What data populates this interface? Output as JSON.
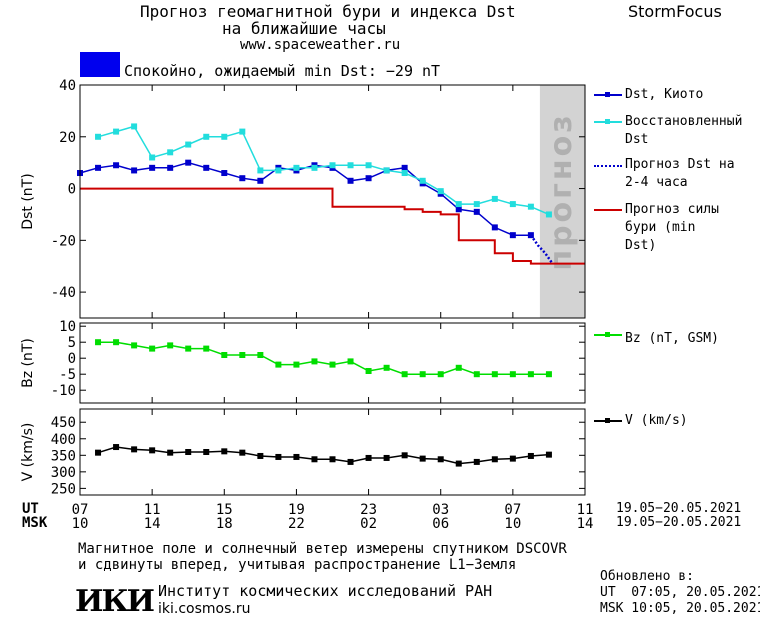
{
  "header": {
    "title_line1": "Прогноз геомагнитной бури и индекса Dst",
    "title_line2": "на ближайшие часы",
    "site": "www.spaceweather.ru",
    "brand": "StormFocus",
    "status_text": "Спокойно, ожидаемый min Dst: −29 nT",
    "status_color": "#0000ee"
  },
  "forecast_band_label": "прогноз",
  "footer": {
    "ut_label": "UT",
    "msk_label": "MSK",
    "ut_ticks": [
      "07",
      "11",
      "15",
      "19",
      "23",
      "03",
      "07",
      "11"
    ],
    "msk_ticks": [
      "10",
      "14",
      "18",
      "22",
      "02",
      "06",
      "10",
      "14"
    ],
    "ut_range": "19.05−20.05.2021",
    "msk_range": "19.05−20.05.2021",
    "note_line1": "Магнитное поле и солнечный ветер измерены спутником DSCOVR",
    "note_line2": "и сдвинуты вперед, учитывая распространение L1−Земля",
    "institute": "Институт космических исследований РАН",
    "institute_url": "iki.cosmos.ru",
    "logo_text": "ИКИ",
    "updated_title": "Обновлено в:",
    "updated_ut": "UT  07:05, 20.05.2021",
    "updated_msk": "MSK 10:05, 20.05.2021"
  },
  "chart_data": [
    {
      "type": "line",
      "ylabel": "Dst (nT)",
      "ylim": [
        -50,
        40
      ],
      "yticks": [
        40,
        20,
        0,
        -20,
        -40
      ],
      "xlim_hours": [
        7,
        35
      ],
      "forecast_band_hours": [
        32.5,
        35
      ],
      "series": [
        {
          "name": "Dst, Киото",
          "color": "#0000cc",
          "marker": "square",
          "x": [
            7,
            8,
            9,
            10,
            11,
            12,
            13,
            14,
            15,
            16,
            17,
            18,
            19,
            20,
            21,
            22,
            23,
            24,
            25,
            26,
            27,
            28,
            29,
            30,
            31,
            32
          ],
          "y": [
            6,
            8,
            9,
            7,
            8,
            8,
            10,
            8,
            6,
            4,
            3,
            8,
            7,
            9,
            8,
            3,
            4,
            7,
            8,
            2,
            -2,
            -8,
            -9,
            -15,
            -18,
            -18
          ]
        },
        {
          "name": "Восстановленный Dst",
          "color": "#22dddd",
          "marker": "square",
          "x": [
            8,
            9,
            10,
            11,
            12,
            13,
            14,
            15,
            16,
            17,
            18,
            19,
            20,
            21,
            22,
            23,
            24,
            25,
            26,
            27,
            28,
            29,
            30,
            31,
            32,
            33
          ],
          "y": [
            20,
            22,
            24,
            12,
            14,
            17,
            20,
            20,
            22,
            7,
            7,
            8,
            8,
            9,
            9,
            9,
            7,
            6,
            3,
            -1,
            -6,
            -6,
            -4,
            -6,
            -7,
            -10
          ]
        },
        {
          "name": "Прогноз Dst на 2-4 часа",
          "color": "#0000cc",
          "marker": "none",
          "dash": true,
          "x": [
            32,
            32.4,
            32.8,
            33.2
          ],
          "y": [
            -18,
            -22,
            -25,
            -29
          ]
        },
        {
          "name": "Прогноз силы бури (min Dst)",
          "color": "#cc0000",
          "marker": "none",
          "step": true,
          "x": [
            7,
            20,
            21,
            22,
            23,
            24,
            25,
            26,
            27,
            28,
            29,
            30,
            31,
            32,
            35
          ],
          "y": [
            0,
            0,
            -7,
            -7,
            -7,
            -7,
            -8,
            -9,
            -10,
            -20,
            -20,
            -25,
            -28,
            -29,
            -29
          ]
        }
      ]
    },
    {
      "type": "line",
      "ylabel": "Bz (nT)",
      "ylim": [
        -14,
        11
      ],
      "yticks": [
        10,
        5,
        0,
        -5,
        -10
      ],
      "xlim_hours": [
        7,
        35
      ],
      "series": [
        {
          "name": "Bz (nT, GSM)",
          "color": "#00dd00",
          "marker": "square",
          "x": [
            8,
            9,
            10,
            11,
            12,
            13,
            14,
            15,
            16,
            17,
            18,
            19,
            20,
            21,
            22,
            23,
            24,
            25,
            26,
            27,
            28,
            29,
            30,
            31,
            32,
            33
          ],
          "y": [
            5,
            5,
            4,
            3,
            4,
            3,
            3,
            1,
            1,
            1,
            -2,
            -2,
            -1,
            -2,
            -1,
            -4,
            -3,
            -5,
            -5,
            -5,
            -3,
            -5,
            -5,
            -5,
            -5,
            -5
          ]
        }
      ]
    },
    {
      "type": "line",
      "ylabel": "V (km/s)",
      "ylim": [
        230,
        490
      ],
      "yticks": [
        450,
        400,
        350,
        300,
        250
      ],
      "xlim_hours": [
        7,
        35
      ],
      "series": [
        {
          "name": "V (km/s)",
          "color": "#000000",
          "marker": "square",
          "x": [
            8,
            9,
            10,
            11,
            12,
            13,
            14,
            15,
            16,
            17,
            18,
            19,
            20,
            21,
            22,
            23,
            24,
            25,
            26,
            27,
            28,
            29,
            30,
            31,
            32,
            33
          ],
          "y": [
            358,
            375,
            368,
            365,
            358,
            360,
            360,
            362,
            358,
            348,
            345,
            345,
            338,
            338,
            330,
            342,
            342,
            350,
            340,
            338,
            325,
            330,
            338,
            340,
            348,
            352
          ]
        }
      ]
    }
  ]
}
